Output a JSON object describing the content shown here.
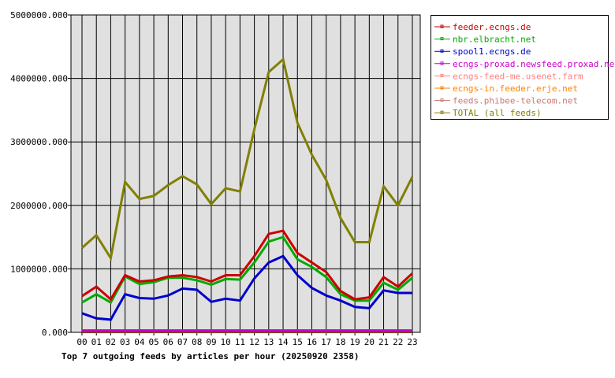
{
  "chart_data": {
    "type": "line",
    "title": "Top 7 outgoing feeds by articles per hour (20250920 2358)",
    "categories": [
      "00",
      "01",
      "02",
      "03",
      "04",
      "05",
      "06",
      "07",
      "08",
      "09",
      "10",
      "11",
      "12",
      "13",
      "14",
      "15",
      "16",
      "17",
      "18",
      "19",
      "20",
      "21",
      "22",
      "23"
    ],
    "ylim": [
      0,
      5000000
    ],
    "yticks": [
      "0.000",
      "1000000.000",
      "2000000.000",
      "3000000.000",
      "4000000.000",
      "5000000.000"
    ],
    "grid": true,
    "legend_position": "right",
    "series": [
      {
        "name": "feeder.ecngs.de",
        "color": "#cc0000",
        "values": [
          570000,
          720000,
          520000,
          900000,
          800000,
          820000,
          880000,
          900000,
          870000,
          800000,
          900000,
          900000,
          1200000,
          1550000,
          1600000,
          1250000,
          1100000,
          950000,
          650000,
          520000,
          550000,
          870000,
          720000,
          930000
        ]
      },
      {
        "name": "nbr.elbracht.net",
        "color": "#00aa00",
        "values": [
          470000,
          600000,
          470000,
          880000,
          760000,
          790000,
          860000,
          860000,
          820000,
          750000,
          840000,
          830000,
          1100000,
          1430000,
          1500000,
          1150000,
          1030000,
          870000,
          600000,
          500000,
          500000,
          780000,
          670000,
          860000
        ]
      },
      {
        "name": "spool1.ecngs.de",
        "color": "#0000cc",
        "values": [
          300000,
          220000,
          200000,
          600000,
          540000,
          530000,
          580000,
          690000,
          670000,
          480000,
          530000,
          500000,
          850000,
          1100000,
          1200000,
          900000,
          700000,
          580000,
          500000,
          400000,
          380000,
          660000,
          620000,
          620000
        ]
      },
      {
        "name": "ecngs-proxad.newsfeed.proxad.net",
        "color": "#cc00cc",
        "values": [
          30000,
          30000,
          30000,
          30000,
          30000,
          30000,
          30000,
          30000,
          30000,
          30000,
          30000,
          30000,
          30000,
          30000,
          30000,
          30000,
          30000,
          30000,
          30000,
          30000,
          30000,
          30000,
          30000,
          30000
        ]
      },
      {
        "name": "ecngs-feed-me.usenet.farm",
        "color": "#ff8080",
        "values": [
          10000,
          10000,
          10000,
          10000,
          10000,
          10000,
          10000,
          10000,
          10000,
          10000,
          10000,
          10000,
          10000,
          10000,
          10000,
          10000,
          10000,
          10000,
          10000,
          10000,
          10000,
          10000,
          10000,
          10000
        ]
      },
      {
        "name": "ecngs-in.feeder.erje.net",
        "color": "#ff8000",
        "values": [
          5000,
          5000,
          5000,
          5000,
          5000,
          5000,
          5000,
          5000,
          5000,
          5000,
          5000,
          5000,
          5000,
          5000,
          5000,
          5000,
          5000,
          5000,
          5000,
          5000,
          5000,
          5000,
          5000,
          5000
        ]
      },
      {
        "name": "feeds.phibee-telecom.net",
        "color": "#cc7777",
        "values": [
          10000,
          10000,
          10000,
          10000,
          10000,
          10000,
          10000,
          10000,
          10000,
          10000,
          10000,
          10000,
          10000,
          10000,
          10000,
          10000,
          10000,
          10000,
          10000,
          10000,
          10000,
          10000,
          10000,
          10000
        ]
      },
      {
        "name": "TOTAL (all feeds)",
        "color": "#808000",
        "values": [
          1330000,
          1530000,
          1170000,
          2370000,
          2100000,
          2150000,
          2320000,
          2460000,
          2330000,
          2020000,
          2270000,
          2220000,
          3200000,
          4100000,
          4300000,
          3300000,
          2800000,
          2400000,
          1800000,
          1420000,
          1420000,
          2300000,
          2000000,
          2450000
        ]
      }
    ]
  }
}
